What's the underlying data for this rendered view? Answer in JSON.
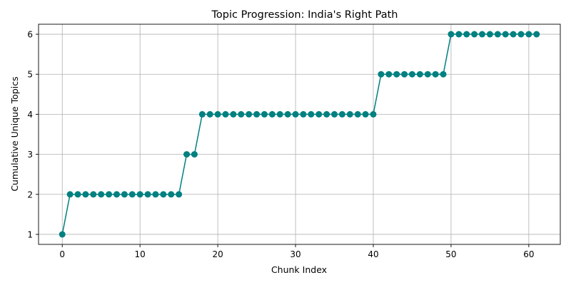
{
  "chart_data": {
    "type": "line",
    "title": "Topic Progression: India's Right Path",
    "xlabel": "Chunk Index",
    "ylabel": "Cumulative Unique Topics",
    "xlim": [
      -3.05,
      64.05
    ],
    "ylim": [
      0.75,
      6.25
    ],
    "x_ticks": [
      0,
      10,
      20,
      30,
      40,
      50,
      60
    ],
    "y_ticks": [
      1,
      2,
      3,
      4,
      5,
      6
    ],
    "grid": true,
    "marker": "circle",
    "color": "#008080",
    "series": [
      {
        "x": [
          0,
          1,
          2,
          3,
          4,
          5,
          6,
          7,
          8,
          9,
          10,
          11,
          12,
          13,
          14,
          15,
          16,
          17,
          18,
          19,
          20,
          21,
          22,
          23,
          24,
          25,
          26,
          27,
          28,
          29,
          30,
          31,
          32,
          33,
          34,
          35,
          36,
          37,
          38,
          39,
          40,
          41,
          42,
          43,
          44,
          45,
          46,
          47,
          48,
          49,
          50,
          51,
          52,
          53,
          54,
          55,
          56,
          57,
          58,
          59,
          60,
          61
        ],
        "values": [
          1,
          2,
          2,
          2,
          2,
          2,
          2,
          2,
          2,
          2,
          2,
          2,
          2,
          2,
          2,
          2,
          3,
          3,
          4,
          4,
          4,
          4,
          4,
          4,
          4,
          4,
          4,
          4,
          4,
          4,
          4,
          4,
          4,
          4,
          4,
          4,
          4,
          4,
          4,
          4,
          4,
          5,
          5,
          5,
          5,
          5,
          5,
          5,
          5,
          5,
          6,
          6,
          6,
          6,
          6,
          6,
          6,
          6,
          6,
          6,
          6,
          6
        ]
      }
    ]
  }
}
